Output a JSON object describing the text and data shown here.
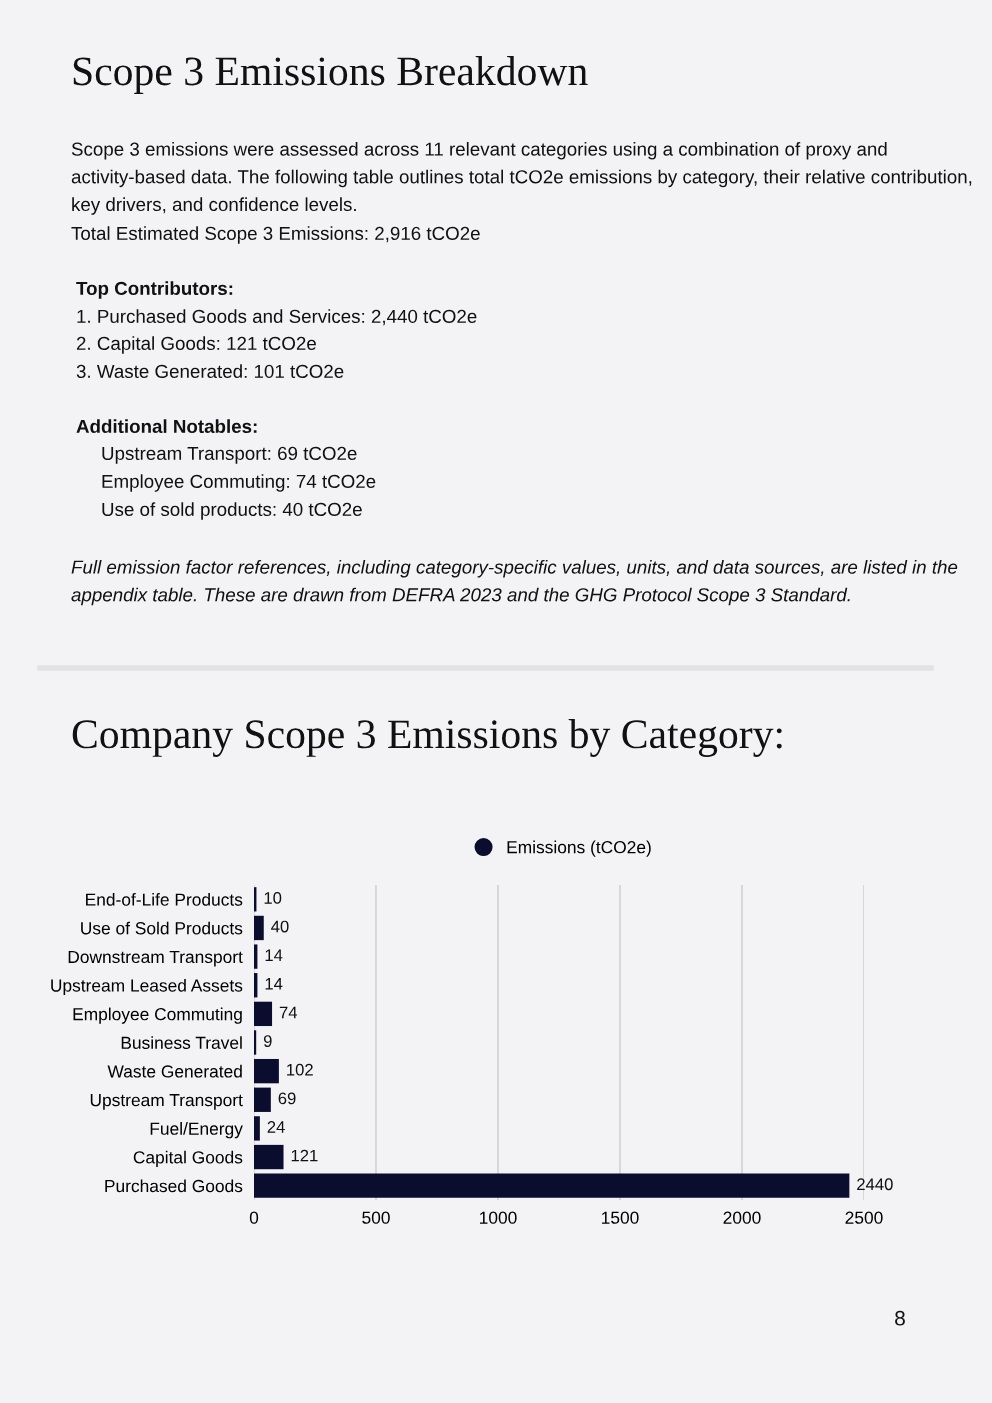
{
  "chart_data": {
    "type": "bar",
    "orientation": "horizontal",
    "title": "Company Scope 3 Emissions by Category:",
    "annotations": [
      "Scope 3 Emissions Breakdown",
      "Scope 3 emissions were assessed across 11 relevant categories using a combination of proxy and activity-based data. The following table outlines total tCO2e emissions by category, their relative contribution, key drivers, and confidence levels.",
      "Total Estimated Scope 3 Emissions: 2,916 tCO2e",
      "Top Contributors:",
      "1. Purchased Goods and Services: 2,440 tCO2e",
      "2. Capital Goods: 121 tCO2e",
      "3. Waste Generated: 101 tCO2e",
      "Additional Notables:",
      "Upstream Transport: 69 tCO2e",
      "Employee Commuting: 74 tCO2e",
      "Use of sold products: 40 tCO2e",
      "Full emission factor references, including category-specific values, units, and data sources, are listed in the appendix table. These are drawn from DEFRA 2023 and the GHG Protocol Scope 3 Standard.",
      "8"
    ],
    "categories": [
      "End-of-Life Products",
      "Use of Sold Products",
      "Downstream Transport",
      "Upstream Leased Assets",
      "Employee Commuting",
      "Business Travel",
      "Waste Generated",
      "Upstream Transport",
      "Fuel/Energy",
      "Capital Goods",
      "Purchased Goods"
    ],
    "series": [
      {
        "name": "Emissions (tCO2e)",
        "color": "#0b0d2e",
        "values": [
          10,
          40,
          14,
          14,
          74,
          9,
          102,
          69,
          24,
          121,
          2440
        ]
      }
    ],
    "xlim": [
      0,
      2500
    ],
    "xticks": [
      0,
      500,
      1000,
      1500,
      2000,
      2500
    ],
    "grid": "x",
    "legend": "top",
    "data_labels": true
  }
}
